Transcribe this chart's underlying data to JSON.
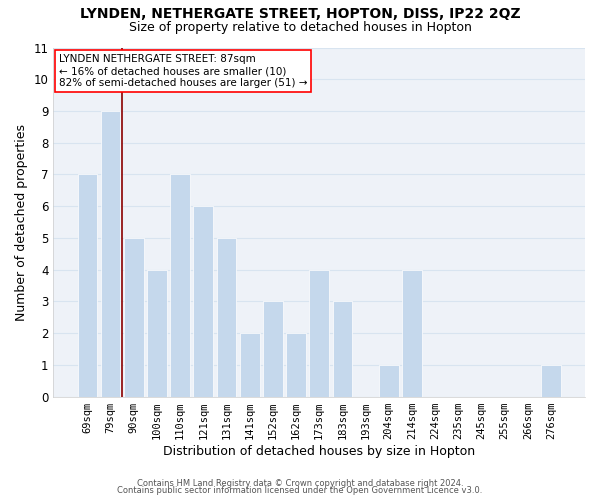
{
  "title": "LYNDEN, NETHERGATE STREET, HOPTON, DISS, IP22 2QZ",
  "subtitle": "Size of property relative to detached houses in Hopton",
  "xlabel": "Distribution of detached houses by size in Hopton",
  "ylabel": "Number of detached properties",
  "bar_labels": [
    "69sqm",
    "79sqm",
    "90sqm",
    "100sqm",
    "110sqm",
    "121sqm",
    "131sqm",
    "141sqm",
    "152sqm",
    "162sqm",
    "173sqm",
    "183sqm",
    "193sqm",
    "204sqm",
    "214sqm",
    "224sqm",
    "235sqm",
    "245sqm",
    "255sqm",
    "266sqm",
    "276sqm"
  ],
  "bar_values": [
    7,
    9,
    5,
    4,
    7,
    6,
    5,
    2,
    3,
    2,
    4,
    3,
    0,
    1,
    4,
    0,
    0,
    0,
    0,
    0,
    1
  ],
  "bar_color": "#c5d8ec",
  "bar_edge_color": "#ffffff",
  "grid_color": "#d8e4f0",
  "ylim": [
    0,
    11
  ],
  "yticks": [
    0,
    1,
    2,
    3,
    4,
    5,
    6,
    7,
    8,
    9,
    10,
    11
  ],
  "red_line_x": 1.5,
  "annotation_title": "LYNDEN NETHERGATE STREET: 87sqm",
  "annotation_line1": "← 16% of detached houses are smaller (10)",
  "annotation_line2": "82% of semi-detached houses are larger (51) →",
  "footer1": "Contains HM Land Registry data © Crown copyright and database right 2024.",
  "footer2": "Contains public sector information licensed under the Open Government Licence v3.0.",
  "background_color": "#ffffff",
  "plot_bg_color": "#eef2f8"
}
